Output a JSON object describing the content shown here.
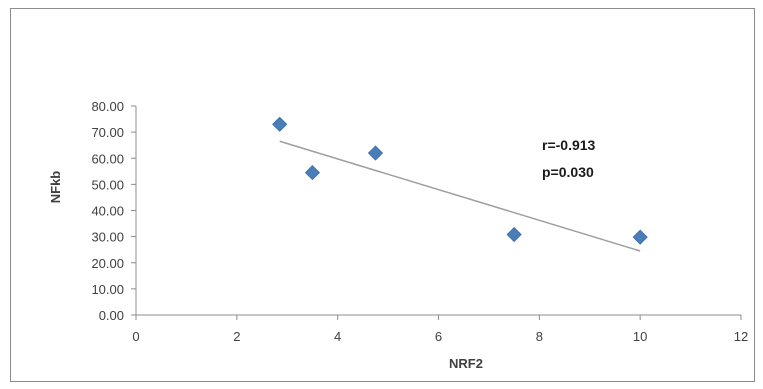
{
  "chart_data": {
    "type": "scatter",
    "xlabel": "NRF2",
    "ylabel": "NFkb",
    "xlim": [
      0,
      12
    ],
    "ylim": [
      0,
      80
    ],
    "x_ticks": [
      "0",
      "2",
      "4",
      "6",
      "8",
      "10",
      "12"
    ],
    "y_ticks": [
      "0.00",
      "10.00",
      "20.00",
      "30.00",
      "40.00",
      "50.00",
      "60.00",
      "70.00",
      "80.00"
    ],
    "grid": false,
    "series": [
      {
        "marker": "diamond",
        "color": "#4a7ebb",
        "points": [
          {
            "x": 2.85,
            "y": 73.0
          },
          {
            "x": 3.5,
            "y": 54.5
          },
          {
            "x": 4.75,
            "y": 62.0
          },
          {
            "x": 7.5,
            "y": 30.8
          },
          {
            "x": 10.0,
            "y": 29.8
          }
        ]
      }
    ],
    "trendline": {
      "x": [
        2.85,
        10.0
      ],
      "y": [
        66.5,
        24.5
      ],
      "color": "#9e9e9e"
    },
    "annotations": [
      "r=-0.913",
      "p=0.030"
    ]
  }
}
